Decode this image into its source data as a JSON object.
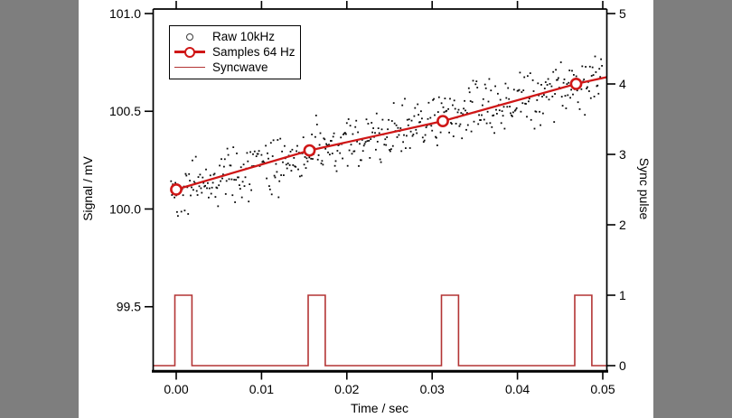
{
  "window": {
    "background": "#ffffff",
    "gutter_color": "#7e7e7e"
  },
  "colors": {
    "axis": "#000000",
    "raw_dots": "#0a0a0a",
    "samples_red": "#cf1717",
    "sync_red": "#b33434"
  },
  "legend": {
    "items": [
      {
        "label": "Raw 10kHz",
        "marker": "open-circle-black"
      },
      {
        "label": "Samples 64 Hz",
        "marker": "red-line-open-circle"
      },
      {
        "label": "Syncwave",
        "marker": "red-line"
      }
    ]
  },
  "chart_data": {
    "type": "scatter",
    "title": "",
    "x_axis": {
      "label": "Time / sec",
      "range": [
        -0.0027,
        0.0505
      ],
      "ticks": [
        0,
        0.01,
        0.02,
        0.03,
        0.04,
        0.05
      ],
      "tick_labels": [
        "0.00",
        "0.01",
        "0.02",
        "0.03",
        "0.04",
        "0.05"
      ]
    },
    "y_left": {
      "label": "Signal / mV",
      "range": [
        99.15,
        101.02
      ],
      "ticks": [
        101.0,
        100.5,
        100.0,
        99.5
      ],
      "tick_labels": [
        "101.0",
        "100.5",
        "100.0",
        "99.5"
      ]
    },
    "y_right": {
      "label": "Sync pulse",
      "range": [
        -0.07,
        5.06
      ],
      "ticks": [
        5,
        4,
        3,
        2,
        1,
        0
      ],
      "tick_labels": [
        "5",
        "4",
        "3",
        "2",
        "1",
        "0"
      ]
    },
    "series": [
      {
        "name": "Raw 10kHz",
        "type": "scatter-noise",
        "axis": "left",
        "sample_rate_hz": 10000,
        "t_start": -0.0006,
        "t_end": 0.05,
        "trend_v_at_0": 100.095,
        "trend_slope_mv_per_s": 11.6,
        "noise_sd_mv": 0.0675,
        "seed": 42
      },
      {
        "name": "Samples 64 Hz",
        "type": "line-markers",
        "axis": "left",
        "t": [
          0,
          0.015625,
          0.03125,
          0.046875
        ],
        "v": [
          100.1,
          100.3,
          100.45,
          100.64
        ],
        "extend_t": 0.0505,
        "extend_v": 100.675
      },
      {
        "name": "Syncwave",
        "type": "pulse-train",
        "axis": "right",
        "low": 0,
        "high": 1,
        "pulse_times": [
          0,
          0.015625,
          0.03125,
          0.046875
        ],
        "pulse_width_s": 0.002
      }
    ]
  }
}
